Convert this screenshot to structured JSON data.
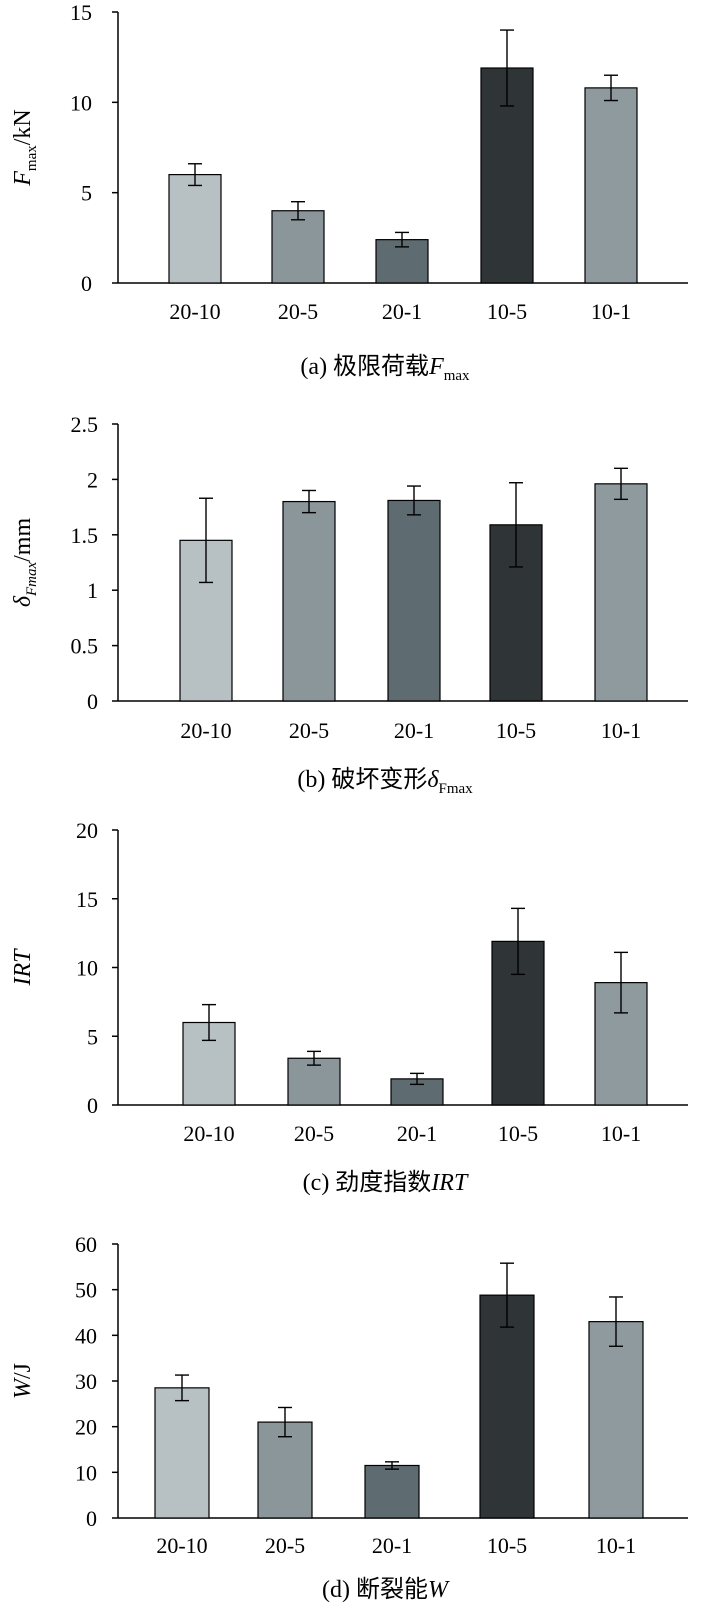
{
  "chart_data": [
    {
      "type": "bar",
      "categories": [
        "20-10",
        "20-5",
        "20-1",
        "10-5",
        "10-1"
      ],
      "values": [
        6.0,
        4.0,
        2.4,
        11.9,
        10.8
      ],
      "errors": [
        0.6,
        0.5,
        0.4,
        2.1,
        0.7
      ],
      "ylim": [
        0,
        15
      ],
      "yticks": [
        "0",
        "5",
        "10",
        "15"
      ],
      "ylabel": {
        "main": "F",
        "sub": "max",
        "tail": "/kN"
      },
      "caption": {
        "text": "(a) 极限荷载",
        "main": "F",
        "sub": "max"
      }
    },
    {
      "type": "bar",
      "categories": [
        "20-10",
        "20-5",
        "20-1",
        "10-5",
        "10-1"
      ],
      "values": [
        1.45,
        1.8,
        1.81,
        1.59,
        1.96
      ],
      "errors": [
        0.38,
        0.1,
        0.13,
        0.38,
        0.14
      ],
      "ylim": [
        0,
        2.5
      ],
      "yticks": [
        "0",
        "0.5",
        "1",
        "1.5",
        "2",
        "2.5"
      ],
      "ylabel": {
        "main": "δ",
        "sub": "Fmax",
        "tail": "/mm"
      },
      "caption": {
        "text": "(b) 破坏变形",
        "main": "δ",
        "sub": "Fmax"
      }
    },
    {
      "type": "bar",
      "categories": [
        "20-10",
        "20-5",
        "20-1",
        "10-5",
        "10-1"
      ],
      "values": [
        6.0,
        3.4,
        1.9,
        11.9,
        8.9
      ],
      "errors": [
        1.3,
        0.5,
        0.4,
        2.4,
        2.2
      ],
      "ylim": [
        0,
        20
      ],
      "yticks": [
        "0",
        "5",
        "10",
        "15",
        "20"
      ],
      "ylabel": {
        "main": "IRT",
        "sub": "",
        "tail": ""
      },
      "caption": {
        "text": "(c) 劲度指数",
        "main": "IRT",
        "sub": ""
      }
    },
    {
      "type": "bar",
      "categories": [
        "20-10",
        "20-5",
        "20-1",
        "10-5",
        "10-1"
      ],
      "values": [
        28.5,
        21.0,
        11.5,
        48.8,
        43.0
      ],
      "errors": [
        2.8,
        3.2,
        0.8,
        7.0,
        5.4
      ],
      "ylim": [
        0,
        60
      ],
      "yticks": [
        "0",
        "10",
        "20",
        "30",
        "40",
        "50",
        "60"
      ],
      "ylabel": {
        "main": "W",
        "sub": "",
        "tail": "/J"
      },
      "caption": {
        "text": "(d) 断裂能",
        "main": "W",
        "sub": ""
      }
    }
  ],
  "colors": [
    "#b7c0c3",
    "#8a969a",
    "#5e6b70",
    "#2f3437",
    "#8e9a9e"
  ]
}
